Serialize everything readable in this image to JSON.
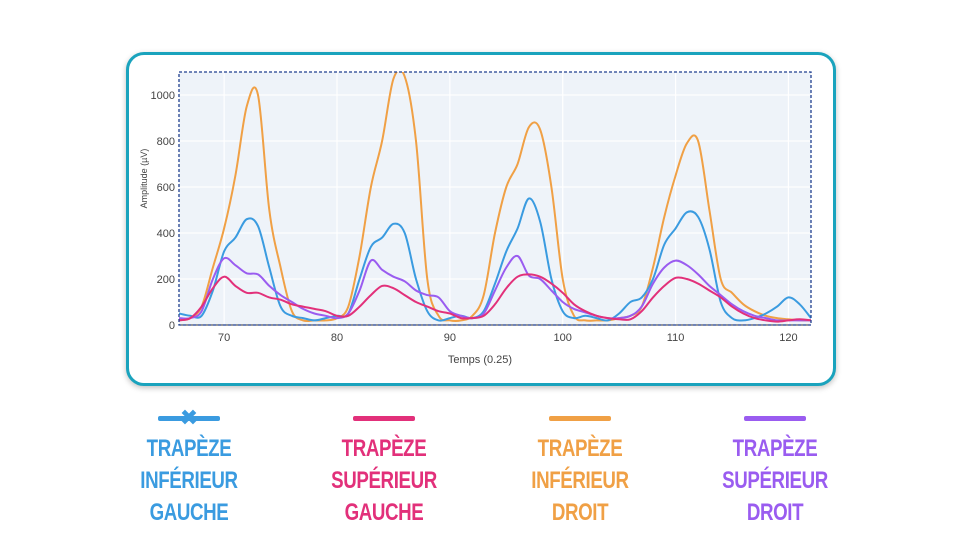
{
  "chart_data": {
    "type": "line",
    "title": "",
    "xlabel": "Temps (0.25)",
    "ylabel": "Amplitude (µV)",
    "xlim": [
      66,
      122
    ],
    "ylim": [
      0,
      1100
    ],
    "xticks": [
      70,
      80,
      90,
      100,
      110,
      120
    ],
    "yticks": [
      0,
      200,
      400,
      600,
      800,
      1000
    ],
    "grid": true,
    "series": [
      {
        "name": "TRAPÈZE INFÉRIEUR GAUCHE",
        "color": "#3a9be0",
        "x": [
          66,
          67,
          68,
          69,
          70,
          71,
          72,
          73,
          74,
          75,
          76,
          77,
          78,
          79,
          80,
          81,
          82,
          83,
          84,
          85,
          86,
          87,
          88,
          89,
          90,
          91,
          92,
          93,
          94,
          95,
          96,
          97,
          98,
          99,
          100,
          101,
          102,
          103,
          104,
          105,
          106,
          107,
          108,
          109,
          110,
          111,
          112,
          113,
          114,
          115,
          116,
          117,
          118,
          119,
          120,
          121,
          122
        ],
        "values": [
          50,
          40,
          40,
          150,
          320,
          380,
          460,
          430,
          250,
          80,
          40,
          30,
          20,
          30,
          40,
          50,
          200,
          340,
          380,
          440,
          400,
          200,
          60,
          20,
          30,
          40,
          30,
          60,
          180,
          320,
          420,
          550,
          450,
          200,
          60,
          30,
          40,
          30,
          20,
          50,
          100,
          120,
          200,
          350,
          420,
          490,
          470,
          330,
          100,
          30,
          20,
          30,
          50,
          80,
          120,
          90,
          30
        ]
      },
      {
        "name": "TRAPÈZE SUPÉRIEUR GAUCHE",
        "color": "#e2307a",
        "x": [
          66,
          67,
          68,
          69,
          70,
          71,
          72,
          73,
          74,
          75,
          76,
          77,
          78,
          79,
          80,
          81,
          82,
          83,
          84,
          85,
          86,
          87,
          88,
          89,
          90,
          91,
          92,
          93,
          94,
          95,
          96,
          97,
          98,
          99,
          100,
          101,
          102,
          103,
          104,
          105,
          106,
          107,
          108,
          109,
          110,
          111,
          112,
          113,
          114,
          115,
          116,
          117,
          118,
          119,
          120,
          121,
          122
        ],
        "values": [
          20,
          30,
          80,
          160,
          210,
          170,
          140,
          140,
          120,
          110,
          90,
          80,
          70,
          60,
          40,
          40,
          80,
          130,
          170,
          160,
          130,
          100,
          80,
          60,
          50,
          30,
          30,
          40,
          90,
          160,
          210,
          220,
          210,
          180,
          140,
          90,
          60,
          40,
          30,
          25,
          25,
          60,
          120,
          170,
          205,
          200,
          180,
          150,
          120,
          80,
          50,
          30,
          20,
          15,
          20,
          25,
          20
        ]
      },
      {
        "name": "TRAPÈZE INFÉRIEUR DROIT",
        "color": "#f0a045",
        "x": [
          66,
          67,
          68,
          69,
          70,
          71,
          72,
          73,
          74,
          75,
          76,
          77,
          78,
          79,
          80,
          81,
          82,
          83,
          84,
          85,
          86,
          87,
          88,
          89,
          90,
          91,
          92,
          93,
          94,
          95,
          96,
          97,
          98,
          99,
          100,
          101,
          102,
          103,
          104,
          105,
          106,
          107,
          108,
          109,
          110,
          111,
          112,
          113,
          114,
          115,
          116,
          117,
          118,
          119,
          120,
          121,
          122
        ],
        "values": [
          20,
          30,
          80,
          250,
          420,
          650,
          950,
          1000,
          500,
          250,
          60,
          20,
          20,
          20,
          30,
          80,
          300,
          600,
          800,
          1070,
          1080,
          800,
          200,
          40,
          20,
          20,
          40,
          130,
          400,
          600,
          700,
          860,
          850,
          600,
          200,
          40,
          20,
          20,
          20,
          30,
          40,
          80,
          250,
          470,
          650,
          790,
          800,
          500,
          200,
          140,
          90,
          60,
          40,
          30,
          25,
          20,
          20
        ]
      },
      {
        "name": "TRAPÈZE SUPÉRIEUR DROIT",
        "color": "#9a5cf0",
        "x": [
          66,
          67,
          68,
          69,
          70,
          71,
          72,
          73,
          74,
          75,
          76,
          77,
          78,
          79,
          80,
          81,
          82,
          83,
          84,
          85,
          86,
          87,
          88,
          89,
          90,
          91,
          92,
          93,
          94,
          95,
          96,
          97,
          98,
          99,
          100,
          101,
          102,
          103,
          104,
          105,
          106,
          107,
          108,
          109,
          110,
          111,
          112,
          113,
          114,
          115,
          116,
          117,
          118,
          119,
          120,
          121,
          122
        ],
        "values": [
          30,
          30,
          60,
          200,
          290,
          260,
          225,
          220,
          170,
          130,
          100,
          70,
          50,
          40,
          30,
          50,
          150,
          280,
          240,
          210,
          190,
          150,
          130,
          120,
          60,
          40,
          30,
          50,
          150,
          250,
          300,
          215,
          200,
          150,
          100,
          70,
          55,
          40,
          30,
          30,
          40,
          80,
          180,
          250,
          280,
          260,
          220,
          170,
          130,
          90,
          60,
          40,
          30,
          20,
          20,
          20,
          20
        ]
      }
    ]
  },
  "legend": {
    "items": [
      {
        "label": "TRAPÈZE INFÉRIEUR\nGAUCHE",
        "color": "#3a9be0",
        "marker": "✖"
      },
      {
        "label": "TRAPÈZE SUPÉRIEUR\nGAUCHE",
        "color": "#e2307a",
        "marker": ""
      },
      {
        "label": "TRAPÈZE INFÉRIEUR\nDROIT",
        "color": "#f0a045",
        "marker": ""
      },
      {
        "label": "TRAPÈZE SUPÉRIEUR\nDROIT",
        "color": "#9a5cf0",
        "marker": ""
      }
    ]
  },
  "colors": {
    "card_border": "#1aa3bd",
    "plot_bg": "#eef3f9",
    "grid": "#ffffff",
    "frame": "#1f3f8f"
  }
}
